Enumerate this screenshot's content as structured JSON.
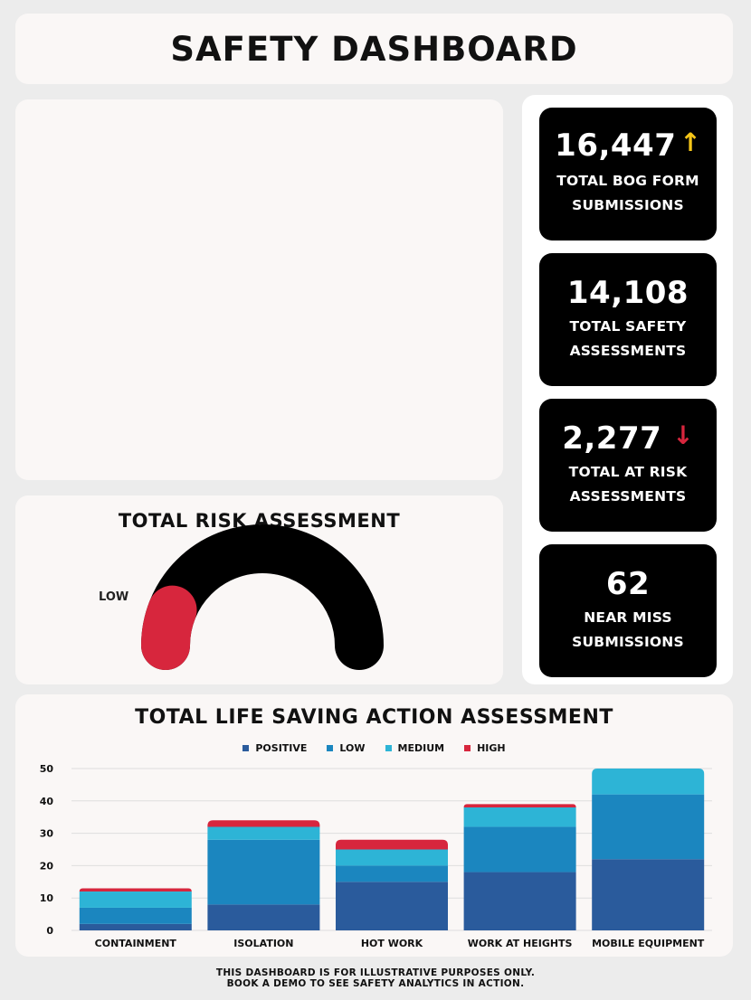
{
  "header": {
    "title": "SAFETY DASHBOARD"
  },
  "kpis": [
    {
      "value": "16,447",
      "label_line1": "TOTAL BOG FORM",
      "label_line2": "SUBMISSIONS",
      "trend": "up",
      "trend_glyph": "↑",
      "trend_color": "#f5c518"
    },
    {
      "value": "14,108",
      "label_line1": "TOTAL SAFETY",
      "label_line2": "ASSESSMENTS",
      "trend": "none",
      "trend_glyph": "",
      "trend_color": ""
    },
    {
      "value": "2,277",
      "label_line1": "TOTAL AT RISK",
      "label_line2": "ASSESSMENTS",
      "trend": "down",
      "trend_glyph": "↓",
      "trend_color": "#d7263d"
    },
    {
      "value": "62",
      "label_line1": "NEAR MISS",
      "label_line2": "SUBMISSIONS",
      "trend": "none",
      "trend_glyph": "",
      "trend_color": ""
    }
  ],
  "gauge": {
    "title": "TOTAL RISK ASSESSMENT",
    "level_label": "LOW",
    "fill_fraction": 0.12,
    "track_color": "#000000",
    "fill_color": "#d7263d"
  },
  "chart_data": {
    "type": "bar",
    "stacked": true,
    "title": "TOTAL LIFE SAVING ACTION ASSESSMENT",
    "categories": [
      "CONTAINMENT",
      "ISOLATION",
      "HOT WORK",
      "WORK AT HEIGHTS",
      "MOBILE EQUIPMENT"
    ],
    "series": [
      {
        "name": "POSITIVE",
        "color": "#2a5b9c",
        "values": [
          2,
          8,
          15,
          18,
          22
        ]
      },
      {
        "name": "LOW",
        "color": "#1b86bf",
        "values": [
          5,
          20,
          5,
          14,
          20
        ]
      },
      {
        "name": "MEDIUM",
        "color": "#2db4d6",
        "values": [
          5,
          4,
          5,
          6,
          8
        ]
      },
      {
        "name": "HIGH",
        "color": "#d7263d",
        "values": [
          1,
          2,
          3,
          1,
          0
        ]
      }
    ],
    "yticks": [
      0,
      10,
      20,
      30,
      40,
      50
    ],
    "ylim": [
      0,
      50
    ],
    "xlabel": "",
    "ylabel": "",
    "legend": "top-center",
    "grid": true
  },
  "footer": {
    "line1": "THIS DASHBOARD IS FOR ILLUSTRATIVE PURPOSES ONLY.",
    "line2": "BOOK A DEMO TO SEE SAFETY ANALYTICS IN ACTION."
  }
}
